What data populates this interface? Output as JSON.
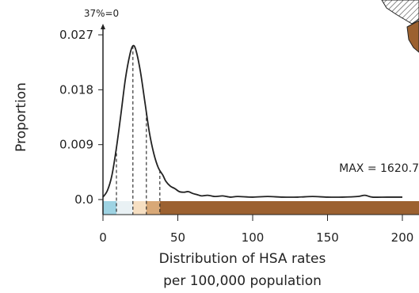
{
  "chart_data": {
    "type": "line",
    "ylabel": "Proportion",
    "xlabel_lines": [
      "Distribution of HSA rates",
      "per 100,000 population"
    ],
    "y_axis_note": "37%=0",
    "max_label": "MAX = 1620.7",
    "xlim": [
      0,
      200
    ],
    "ylim": [
      0,
      0.027
    ],
    "x_ticks": [
      0,
      50,
      100,
      150,
      200
    ],
    "y_ticks": [
      {
        "value": 0,
        "label": "0.0"
      },
      {
        "value": 0.009,
        "label": "0.009"
      },
      {
        "value": 0.018,
        "label": "0.018"
      },
      {
        "value": 0.027,
        "label": "0.027"
      }
    ],
    "density_curve": {
      "x": [
        0,
        3,
        6,
        9,
        12,
        15,
        18,
        20,
        22,
        25,
        28,
        31,
        34,
        37,
        40,
        42,
        45,
        48,
        51,
        54,
        57,
        60,
        63,
        66,
        70,
        75,
        80,
        85,
        90,
        100,
        110,
        120,
        130,
        140,
        150,
        160,
        170,
        175,
        180,
        190,
        200
      ],
      "y": [
        0.0004,
        0.0015,
        0.004,
        0.0085,
        0.014,
        0.0198,
        0.0238,
        0.0252,
        0.0245,
        0.021,
        0.016,
        0.011,
        0.0075,
        0.0052,
        0.004,
        0.003,
        0.0022,
        0.0018,
        0.0013,
        0.0012,
        0.0013,
        0.001,
        0.0008,
        0.0006,
        0.0007,
        0.0005,
        0.0006,
        0.0004,
        0.0005,
        0.0004,
        0.0005,
        0.0004,
        0.0004,
        0.0005,
        0.0004,
        0.0004,
        0.0005,
        0.0007,
        0.0004,
        0.0004,
        0.0004
      ]
    },
    "quantile_lines": [
      9,
      20,
      29,
      38
    ],
    "color_bands": [
      {
        "from": 0,
        "to": 9,
        "color": "#9ed3e3"
      },
      {
        "from": 9,
        "to": 20,
        "color": "#e9f1f4"
      },
      {
        "from": 20,
        "to": 29,
        "color": "#f6dfc2"
      },
      {
        "from": 29,
        "to": 38,
        "color": "#d8a877"
      },
      {
        "from": 38,
        "to": 214,
        "color": "#9c6130"
      }
    ],
    "colors": {
      "curve": "#222222",
      "axis": "#222222",
      "map_fill": "#9c6130",
      "map_stroke": "#222222"
    }
  }
}
